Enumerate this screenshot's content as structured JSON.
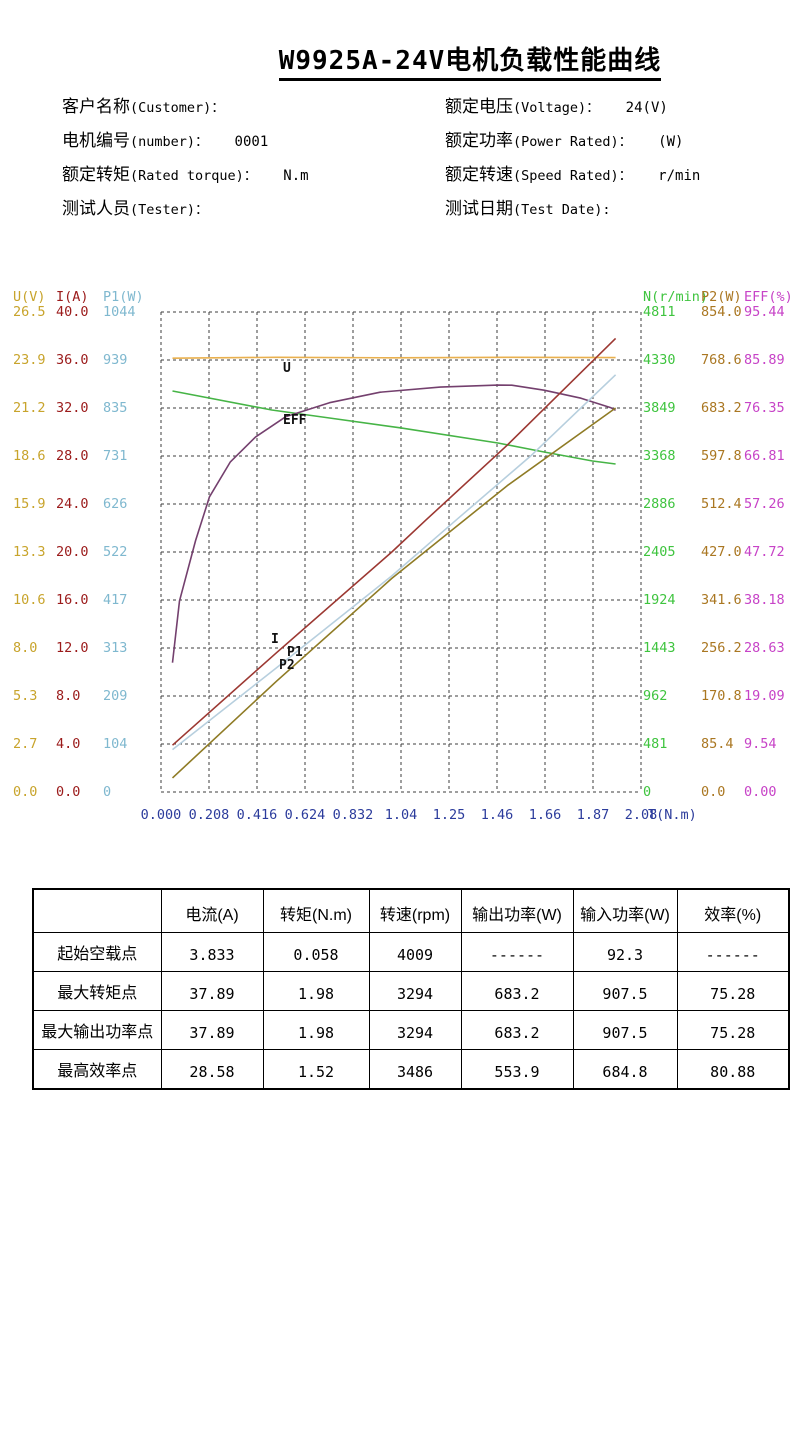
{
  "page": {
    "title": "W9925A-24V电机负载性能曲线"
  },
  "info": {
    "left": [
      {
        "zh": "客户名称",
        "en": "(Customer)：",
        "value": ""
      },
      {
        "zh": "电机编号",
        "en": "(number)：",
        "value": "0001"
      },
      {
        "zh": "额定转矩",
        "en": "(Rated torque)：",
        "value": "N.m"
      },
      {
        "zh": "测试人员",
        "en": "(Tester)：",
        "value": ""
      }
    ],
    "right": [
      {
        "zh": "额定电压",
        "en": "(Voltage)：",
        "value": "24(V)"
      },
      {
        "zh": "额定功率",
        "en": "(Power Rated)：",
        "value": "(W)"
      },
      {
        "zh": "额定转速",
        "en": "(Speed Rated)：",
        "value": "r/min"
      },
      {
        "zh": "测试日期",
        "en": "(Test Date):",
        "value": ""
      }
    ]
  },
  "chart_data": {
    "type": "line",
    "title": "W9925A-24V电机负载性能曲线",
    "grid": "dashed 10x10",
    "x_axis": {
      "label": "T(N.m)",
      "min": 0,
      "max": 2.08,
      "ticks": [
        "0.000",
        "0.208",
        "0.416",
        "0.624",
        "0.832",
        "1.04",
        "1.25",
        "1.46",
        "1.66",
        "1.87",
        "2.08"
      ],
      "color": "#2C3C9C"
    },
    "y_axes": [
      {
        "id": "U",
        "header": "U(V)",
        "max": 26.5,
        "color": "#C8A42C",
        "side": "left",
        "ticks": [
          "26.5",
          "23.9",
          "21.2",
          "18.6",
          "15.9",
          "13.3",
          "10.6",
          "8.0",
          "5.3",
          "2.7",
          "0.0"
        ]
      },
      {
        "id": "I",
        "header": "I(A)",
        "max": 40.0,
        "color": "#9B1B1B",
        "side": "left",
        "ticks": [
          "40.0",
          "36.0",
          "32.0",
          "28.0",
          "24.0",
          "20.0",
          "16.0",
          "12.0",
          "8.0",
          "4.0",
          "0.0"
        ]
      },
      {
        "id": "P1",
        "header": "P1(W)",
        "max": 1044,
        "color": "#7FB8CF",
        "side": "left",
        "ticks": [
          "1044",
          "939",
          "835",
          "731",
          "626",
          "522",
          "417",
          "313",
          "209",
          "104",
          "0"
        ]
      },
      {
        "id": "N",
        "header": "N(r/min)",
        "max": 4811,
        "color": "#3FC43F",
        "side": "right",
        "ticks": [
          "4811",
          "4330",
          "3849",
          "3368",
          "2886",
          "2405",
          "1924",
          "1443",
          "962",
          "481",
          "0"
        ]
      },
      {
        "id": "P2",
        "header": "P2(W)",
        "max": 854.0,
        "color": "#AA7722",
        "side": "right",
        "ticks": [
          "854.0",
          "768.6",
          "683.2",
          "597.8",
          "512.4",
          "427.0",
          "341.6",
          "256.2",
          "170.8",
          "85.4",
          "0.0"
        ]
      },
      {
        "id": "EFF",
        "header": "EFF(%)",
        "max": 95.44,
        "color": "#C743C7",
        "side": "right",
        "ticks": [
          "95.44",
          "85.89",
          "76.35",
          "66.81",
          "57.26",
          "47.72",
          "38.18",
          "28.63",
          "19.09",
          "9.54",
          "0.00"
        ]
      }
    ],
    "series": [
      {
        "name": "U",
        "axis": "U",
        "color": "#E9B04E",
        "points": [
          [
            0.05,
            23.95
          ],
          [
            0.5,
            24.0
          ],
          [
            1.0,
            23.97
          ],
          [
            1.5,
            24.0
          ],
          [
            1.97,
            23.98
          ]
        ]
      },
      {
        "name": "N",
        "axis": "N",
        "color": "#46B446",
        "points": [
          [
            0.05,
            4019
          ],
          [
            0.48,
            3829
          ],
          [
            0.73,
            3749
          ],
          [
            1.04,
            3649
          ],
          [
            1.46,
            3498
          ],
          [
            1.66,
            3408
          ],
          [
            1.87,
            3318
          ],
          [
            1.97,
            3288
          ]
        ]
      },
      {
        "name": "EFF",
        "axis": "EFF",
        "color": "#74406E",
        "points": [
          [
            0.05,
            25.7
          ],
          [
            0.08,
            38.0
          ],
          [
            0.15,
            50.0
          ],
          [
            0.21,
            58.7
          ],
          [
            0.3,
            65.6
          ],
          [
            0.41,
            70.6
          ],
          [
            0.54,
            74.6
          ],
          [
            0.73,
            77.4
          ],
          [
            0.95,
            79.5
          ],
          [
            1.21,
            80.5
          ],
          [
            1.46,
            80.9
          ],
          [
            1.52,
            80.88
          ],
          [
            1.66,
            79.9
          ],
          [
            1.82,
            78.3
          ],
          [
            1.95,
            76.4
          ],
          [
            1.97,
            75.9
          ]
        ]
      },
      {
        "name": "I",
        "axis": "I",
        "color": "#9C3832",
        "points": [
          [
            0.05,
            3.9
          ],
          [
            0.5,
            11.6
          ],
          [
            1.0,
            20.0
          ],
          [
            1.15,
            22.7
          ],
          [
            1.5,
            28.9
          ],
          [
            1.97,
            37.8
          ]
        ]
      },
      {
        "name": "P1",
        "axis": "P1",
        "color": "#B7CFDE",
        "points": [
          [
            0.05,
            92.3
          ],
          [
            0.5,
            270
          ],
          [
            1.0,
            470
          ],
          [
            1.28,
            592
          ],
          [
            1.6,
            730
          ],
          [
            1.97,
            907.5
          ]
        ]
      },
      {
        "name": "P2",
        "axis": "P2",
        "color": "#8F7B25",
        "points": [
          [
            0.05,
            25
          ],
          [
            0.5,
            197
          ],
          [
            1.0,
            380
          ],
          [
            1.5,
            545
          ],
          [
            1.97,
            683.2
          ]
        ]
      }
    ],
    "curve_labels": [
      {
        "text": "U",
        "x": 283,
        "y": 372
      },
      {
        "text": "EFF",
        "x": 283,
        "y": 424
      },
      {
        "text": "I",
        "x": 271,
        "y": 643
      },
      {
        "text": "P1",
        "x": 287,
        "y": 656
      },
      {
        "text": "P2",
        "x": 279,
        "y": 669
      }
    ]
  },
  "table": {
    "headers": [
      "",
      "电流(A)",
      "转矩(N.m)",
      "转速(rpm)",
      "输出功率(W)",
      "输入功率(W)",
      "效率(%)"
    ],
    "rows": [
      {
        "label": "起始空载点",
        "values": [
          "3.833",
          "0.058",
          "4009",
          "------",
          "92.3",
          "------"
        ]
      },
      {
        "label": "最大转矩点",
        "values": [
          "37.89",
          "1.98",
          "3294",
          "683.2",
          "907.5",
          "75.28"
        ]
      },
      {
        "label": "最大输出功率点",
        "values": [
          "37.89",
          "1.98",
          "3294",
          "683.2",
          "907.5",
          "75.28"
        ]
      },
      {
        "label": "最高效率点",
        "values": [
          "28.58",
          "1.52",
          "3486",
          "553.9",
          "684.8",
          "80.88"
        ]
      }
    ]
  }
}
